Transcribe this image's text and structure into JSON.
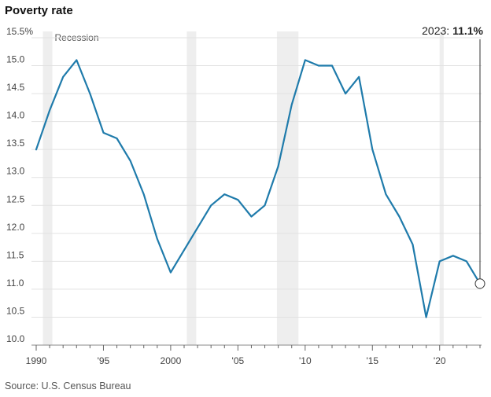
{
  "header": {
    "title": "Poverty rate"
  },
  "footer": {
    "source": "Source: U.S. Census Bureau"
  },
  "chart_data": {
    "type": "line",
    "title": "Poverty rate",
    "xlabel": "",
    "ylabel": "",
    "xlim": [
      1990,
      2023
    ],
    "ylim": [
      10.0,
      15.5
    ],
    "grid": true,
    "x_ticks": [
      {
        "value": 1990,
        "label": "1990"
      },
      {
        "value": 1995,
        "label": "'95"
      },
      {
        "value": 2000,
        "label": "2000"
      },
      {
        "value": 2005,
        "label": "'05"
      },
      {
        "value": 2010,
        "label": "'10"
      },
      {
        "value": 2015,
        "label": "'15"
      },
      {
        "value": 2020,
        "label": "'20"
      }
    ],
    "y_ticks": [
      {
        "value": 15.5,
        "label": "15.5%"
      },
      {
        "value": 15.0,
        "label": "15.0"
      },
      {
        "value": 14.5,
        "label": "14.5"
      },
      {
        "value": 14.0,
        "label": "14.0"
      },
      {
        "value": 13.5,
        "label": "13.5"
      },
      {
        "value": 13.0,
        "label": "13.0"
      },
      {
        "value": 12.5,
        "label": "12.5"
      },
      {
        "value": 12.0,
        "label": "12.0"
      },
      {
        "value": 11.5,
        "label": "11.5"
      },
      {
        "value": 11.0,
        "label": "11.0"
      },
      {
        "value": 10.5,
        "label": "10.5"
      },
      {
        "value": 10.0,
        "label": "10.0"
      }
    ],
    "recession_label": "Recession",
    "recessions": [
      [
        1990.5,
        1991.2
      ],
      [
        2001.2,
        2001.9
      ],
      [
        2007.9,
        2009.5
      ],
      [
        2020.0,
        2020.3
      ]
    ],
    "series": [
      {
        "color": "#1f7bab",
        "x": [
          1990,
          1991,
          1992,
          1993,
          1994,
          1995,
          1996,
          1997,
          1998,
          1999,
          2000,
          2001,
          2002,
          2003,
          2004,
          2005,
          2006,
          2007,
          2008,
          2009,
          2010,
          2011,
          2012,
          2013,
          2014,
          2015,
          2016,
          2017,
          2018,
          2019,
          2020,
          2021,
          2022,
          2023
        ],
        "values": [
          13.5,
          14.2,
          14.8,
          15.1,
          14.5,
          13.8,
          13.7,
          13.3,
          12.7,
          11.9,
          11.3,
          11.7,
          12.1,
          12.5,
          12.7,
          12.6,
          12.3,
          12.5,
          13.2,
          14.3,
          15.1,
          15.0,
          15.0,
          14.5,
          14.8,
          13.5,
          12.7,
          12.3,
          11.8,
          10.5,
          11.5,
          11.6,
          11.5,
          11.1
        ]
      }
    ],
    "annotation": {
      "label": "2023:",
      "value": "11.1%",
      "x": 2023,
      "y": 11.1
    }
  },
  "colors": {
    "line": "#1f7bab",
    "grid": "#e2e2e2",
    "recession": "#eeeeee",
    "annotation_line": "#333333"
  }
}
